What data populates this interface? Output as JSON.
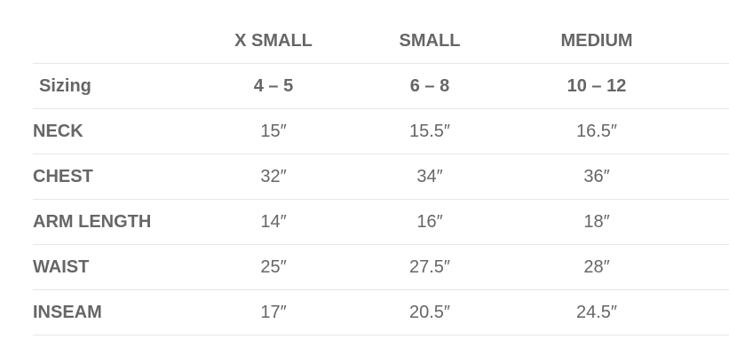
{
  "header": {
    "label": "",
    "columns": [
      "X SMALL",
      "SMALL",
      "MEDIUM"
    ]
  },
  "rows": [
    {
      "label": "Sizing",
      "values": [
        "4 – 5",
        "6 – 8",
        "10 – 12"
      ],
      "bold": true
    },
    {
      "label": "NECK",
      "values": [
        "15″",
        "15.5″",
        "16.5″"
      ]
    },
    {
      "label": "CHEST",
      "values": [
        "32″",
        "34″",
        "36″"
      ]
    },
    {
      "label": "ARM LENGTH",
      "values": [
        "14″",
        "16″",
        "18″"
      ]
    },
    {
      "label": "WAIST",
      "values": [
        "25″",
        "27.5″",
        "28″"
      ]
    },
    {
      "label": "INSEAM",
      "values": [
        "17″",
        "20.5″",
        "24.5″"
      ]
    }
  ],
  "colors": {
    "text": "#666666",
    "rule": "#e6e6e6"
  }
}
